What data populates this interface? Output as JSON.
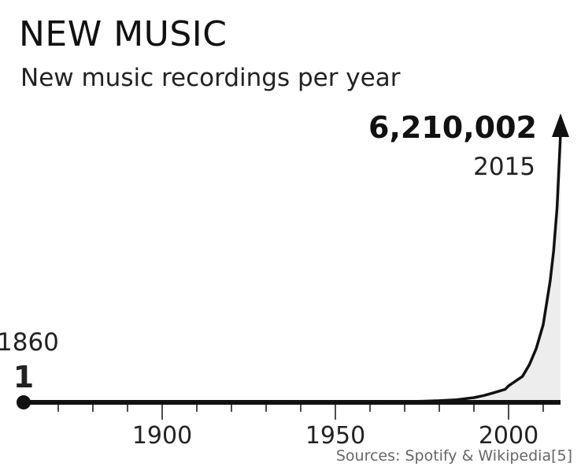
{
  "chart_data": {
    "type": "area",
    "title": "NEW MUSIC",
    "subtitle": "New music recordings per year",
    "source": "Sources: Spotify & Wikipedia[5]",
    "xlim": [
      1860,
      2015
    ],
    "ylim": [
      0,
      6210002
    ],
    "x_ticks": [
      1900,
      1950,
      2000
    ],
    "series": [
      {
        "x": [
          1860,
          1880,
          1900,
          1920,
          1940,
          1950,
          1960,
          1970,
          1975,
          1980,
          1985,
          1990,
          1993,
          1996,
          1999,
          2000,
          2002,
          2004,
          2006,
          2008,
          2010,
          2012,
          2013,
          2014,
          2015
        ],
        "y": [
          1,
          100,
          500,
          1500,
          3000,
          5000,
          9000,
          18000,
          25000,
          38000,
          60000,
          110000,
          160000,
          230000,
          300000,
          380000,
          490000,
          600000,
          870000,
          1250000,
          1800000,
          2800000,
          3500000,
          4500000,
          6210002
        ]
      }
    ],
    "annotations": {
      "start_year": "1860",
      "start_value": "1",
      "end_value": "6,210,002",
      "end_year": "2015"
    }
  }
}
